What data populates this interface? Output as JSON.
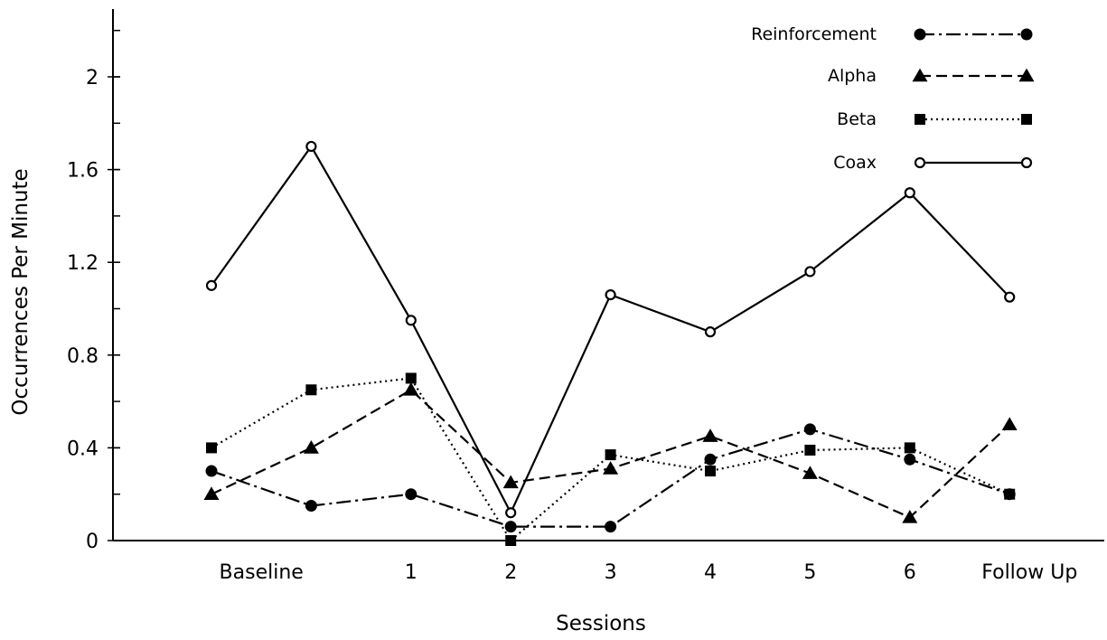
{
  "chart_data": {
    "type": "line",
    "title": "",
    "xlabel": "Sessions",
    "ylabel": "Occurrences Per Minute",
    "ylim": [
      0,
      2.2
    ],
    "yticks": [
      0,
      0.4,
      0.8,
      1.2,
      1.6,
      2
    ],
    "ytick_labels": [
      "0",
      "0.4",
      "0.8",
      "1.2",
      "1.6",
      "2"
    ],
    "y_minor_step": 0.2,
    "legend_position": "top-right",
    "grid": false,
    "x_label_positions": [
      0.5,
      2,
      3,
      4,
      5,
      6,
      7,
      8.2
    ],
    "x_labels": [
      "Baseline",
      "1",
      "2",
      "3",
      "4",
      "5",
      "6",
      "Follow Up"
    ],
    "x": [
      0,
      1,
      2,
      3,
      4,
      5,
      6,
      7,
      8
    ],
    "series": [
      {
        "name": "Reinforcement",
        "style": "dashdot",
        "marker": "circle-filled",
        "color": "#000000",
        "values": [
          0.3,
          0.15,
          0.2,
          0.06,
          0.06,
          0.35,
          0.48,
          0.35,
          0.2
        ]
      },
      {
        "name": "Alpha",
        "style": "dashed",
        "marker": "triangle-filled",
        "color": "#000000",
        "values": [
          0.2,
          0.4,
          0.65,
          0.25,
          0.31,
          0.45,
          0.29,
          0.1,
          0.5
        ]
      },
      {
        "name": "Beta",
        "style": "dotted",
        "marker": "square-filled",
        "color": "#000000",
        "values": [
          0.4,
          0.65,
          0.7,
          0.0,
          0.37,
          0.3,
          0.39,
          0.4,
          0.2
        ]
      },
      {
        "name": "Coax",
        "style": "solid",
        "marker": "circle-open",
        "color": "#000000",
        "values": [
          1.1,
          1.7,
          0.95,
          0.12,
          1.06,
          0.9,
          1.16,
          1.5,
          1.05
        ]
      }
    ]
  }
}
